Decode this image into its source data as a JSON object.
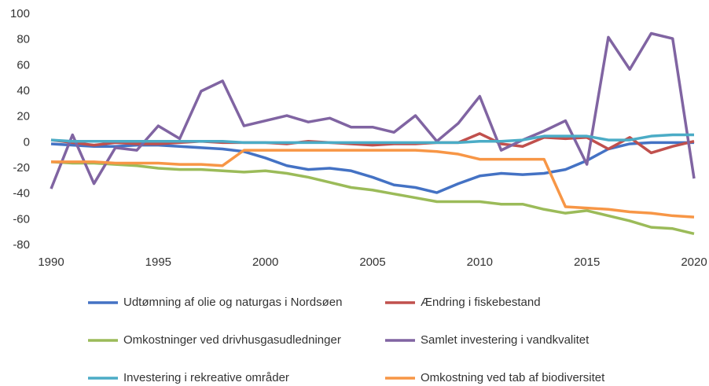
{
  "chart_data": {
    "type": "line",
    "x": [
      1990,
      1991,
      1992,
      1993,
      1994,
      1995,
      1996,
      1997,
      1998,
      1999,
      2000,
      2001,
      2002,
      2003,
      2004,
      2005,
      2006,
      2007,
      2008,
      2009,
      2010,
      2011,
      2012,
      2013,
      2014,
      2015,
      2016,
      2017,
      2018,
      2019,
      2020
    ],
    "xlim": [
      1990,
      2020
    ],
    "xticks": [
      1990,
      1995,
      2000,
      2005,
      2010,
      2015,
      2020
    ],
    "ylim": [
      -80,
      100
    ],
    "yticks": [
      -80,
      -60,
      -40,
      -20,
      0,
      20,
      40,
      60,
      80,
      100
    ],
    "grid": false,
    "legend": "bottom",
    "series": [
      {
        "name": "Udtømning af olie og naturgas i Nordsøen",
        "color": "#4472C4",
        "values": [
          -1,
          -2,
          -3,
          -3,
          -2,
          -2,
          -3,
          -4,
          -5,
          -7,
          -12,
          -18,
          -21,
          -20,
          -22,
          -27,
          -33,
          -35,
          -39,
          -32,
          -26,
          -24,
          -25,
          -24,
          -21,
          -14,
          -5,
          -1,
          0,
          0,
          0
        ]
      },
      {
        "name": "Ændring i fiskebestand",
        "color": "#C0504D",
        "values": [
          2,
          0,
          -2,
          0,
          -1,
          -1,
          0,
          1,
          0,
          0,
          0,
          -1,
          1,
          0,
          -1,
          -2,
          -1,
          -1,
          0,
          0,
          7,
          -1,
          -3,
          4,
          3,
          4,
          -5,
          4,
          -8,
          -3,
          1
        ]
      },
      {
        "name": "Omkostninger ved drivhusgasudledninger",
        "color": "#9BBB59",
        "values": [
          -15,
          -16,
          -16,
          -17,
          -18,
          -20,
          -21,
          -21,
          -22,
          -23,
          -22,
          -24,
          -27,
          -31,
          -35,
          -37,
          -40,
          -43,
          -46,
          -46,
          -46,
          -48,
          -48,
          -52,
          -55,
          -53,
          -57,
          -61,
          -66,
          -67,
          -71
        ]
      },
      {
        "name": "Samlet investering i vandkvalitet",
        "color": "#8064A2",
        "values": [
          -36,
          6,
          -32,
          -4,
          -6,
          13,
          3,
          40,
          48,
          13,
          17,
          21,
          16,
          19,
          12,
          12,
          8,
          21,
          1,
          15,
          36,
          -6,
          2,
          9,
          17,
          -17,
          82,
          57,
          85,
          81,
          -28
        ]
      },
      {
        "name": "Investering i rekreative områder",
        "color": "#4BACC6",
        "values": [
          2,
          1,
          1,
          1,
          1,
          1,
          1,
          1,
          1,
          0,
          0,
          0,
          0,
          0,
          0,
          0,
          0,
          0,
          0,
          0,
          1,
          1,
          2,
          5,
          5,
          5,
          2,
          2,
          5,
          6,
          6
        ]
      },
      {
        "name": "Omkostning ved tab af biodiversitet",
        "color": "#F79646",
        "values": [
          -15,
          -15,
          -15,
          -16,
          -16,
          -16,
          -17,
          -17,
          -18,
          -6,
          -6,
          -6,
          -6,
          -6,
          -6,
          -6,
          -6,
          -6,
          -7,
          -9,
          -13,
          -13,
          -13,
          -13,
          -50,
          -51,
          -52,
          -54,
          -55,
          -57,
          -58
        ]
      }
    ]
  }
}
